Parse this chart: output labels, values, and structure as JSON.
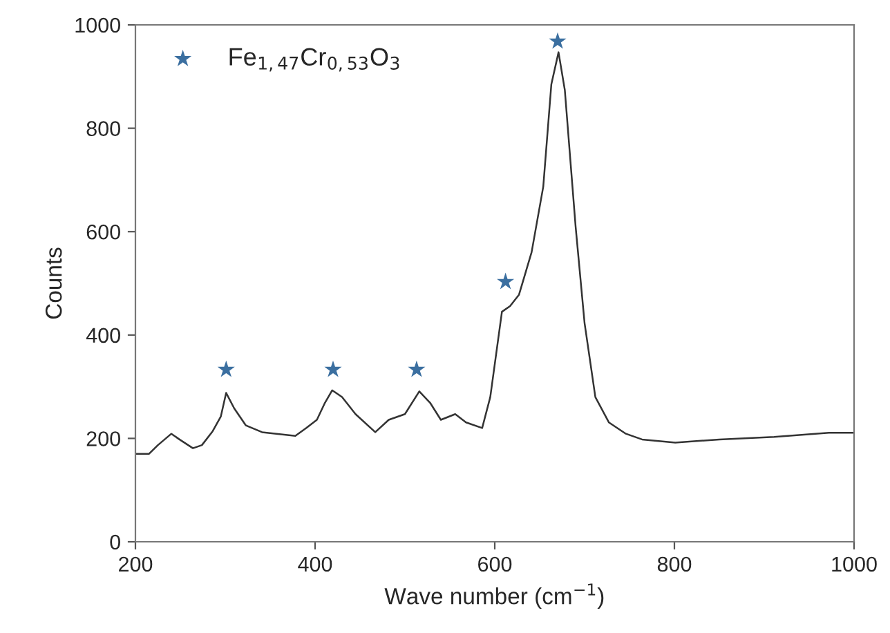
{
  "chart_data": {
    "type": "line",
    "xlabel": "Wave number (cm$^{−1}$)",
    "ylabel": "Counts",
    "xlim": [
      200,
      1000
    ],
    "xticks": [
      200,
      400,
      600,
      800,
      1000
    ],
    "ylim": [
      0,
      1000
    ],
    "yticks": [
      0,
      200,
      400,
      600,
      800,
      1000
    ],
    "grid": false,
    "legend": "top left",
    "series": [
      {
        "color": "#333333",
        "marker": "none",
        "line_style": "solid",
        "x": [
          200,
          215,
          225,
          240,
          249,
          264,
          274,
          286,
          295,
          301,
          310,
          323,
          341,
          378,
          390,
          402,
          411,
          419,
          430,
          445,
          467,
          482,
          500,
          516,
          528,
          540,
          556,
          568,
          586,
          595,
          608,
          617,
          627,
          641,
          654,
          663,
          671,
          678,
          690,
          700,
          712,
          727,
          746,
          764,
          801,
          850,
          911,
          972,
          1000
        ],
        "values": [
          170,
          170,
          187,
          209,
          198,
          181,
          187,
          214,
          242,
          288,
          258,
          225,
          212,
          205,
          220,
          236,
          269,
          293,
          280,
          247,
          212,
          236,
          247,
          291,
          269,
          236,
          247,
          231,
          220,
          280,
          445,
          456,
          478,
          560,
          687,
          885,
          947,
          874,
          610,
          423,
          280,
          231,
          209,
          198,
          192,
          198,
          203,
          211,
          211
        ]
      },
      {
        "type": "scatter",
        "name": "Fe$_{1,47}$Cr$_{0,53}$O$_{3}$",
        "color": "#3b6fa0",
        "marker": "star",
        "x": [
          301,
          420,
          513,
          612,
          670
        ],
        "values": [
          333,
          333,
          333,
          503,
          968
        ]
      }
    ]
  }
}
